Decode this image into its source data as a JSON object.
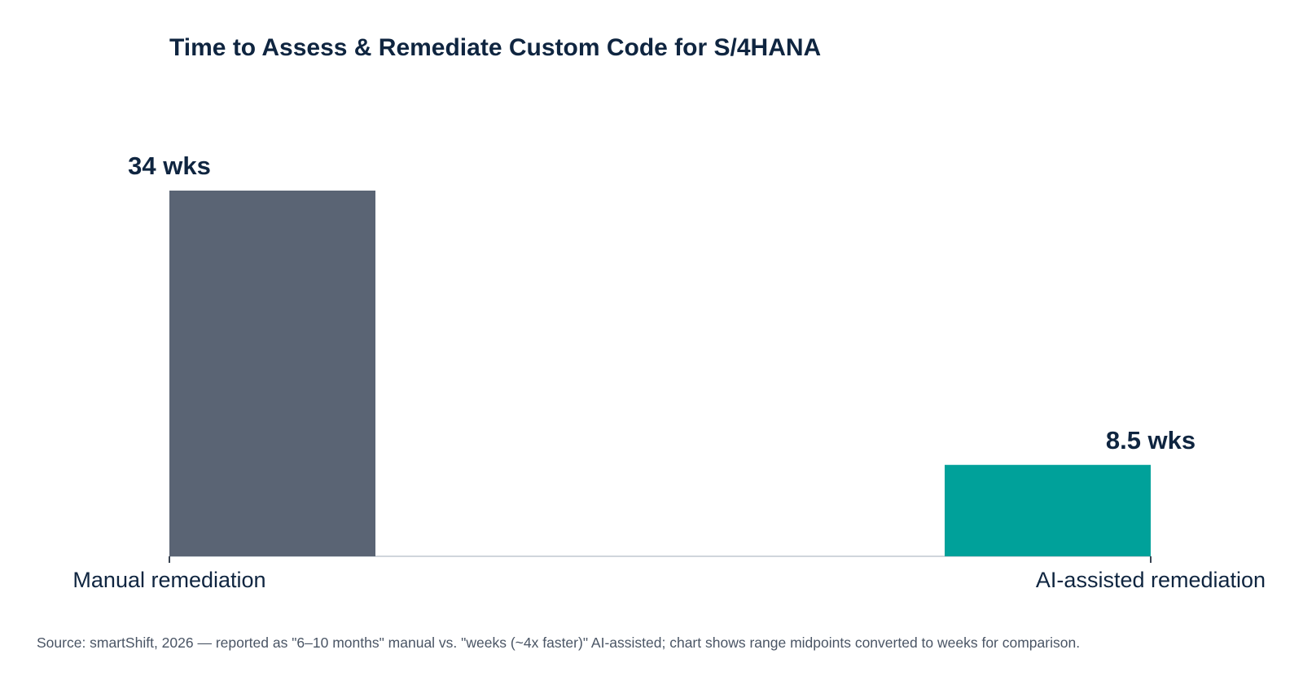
{
  "chart_data": {
    "type": "bar",
    "title": "Time to Assess & Remediate Custom Code for S/4HANA",
    "categories": [
      "Manual remediation",
      "AI-assisted remediation"
    ],
    "values": [
      34,
      8.5
    ],
    "value_labels": [
      "34 wks",
      "8.5 wks"
    ],
    "colors": [
      "#5a6474",
      "#00a19a"
    ],
    "ylim": [
      0,
      34
    ],
    "xlabel": "",
    "ylabel": "",
    "grid": false,
    "legend": "none",
    "axis_color": "#d0d5dc"
  },
  "footer": {
    "source": "Source: smartShift, 2026 — reported as \"6–10 months\" manual vs. \"weeks (~4x faster)\" AI-assisted; chart shows range midpoints converted to weeks for comparison."
  }
}
